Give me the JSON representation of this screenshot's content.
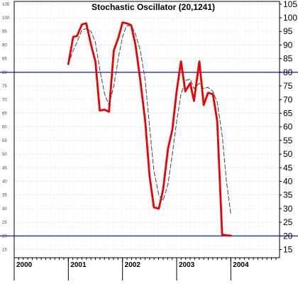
{
  "chart_data": {
    "type": "line",
    "title": "Stochastic Oscillator (20,1241)",
    "x_start": 2000.0,
    "x_end": 2004.9,
    "ylim": [
      12,
      106
    ],
    "y_ticks": [
      15,
      20,
      25,
      30,
      35,
      40,
      45,
      50,
      55,
      60,
      65,
      70,
      75,
      80,
      85,
      90,
      95,
      100,
      105
    ],
    "x_tick_labels": [
      "2000",
      "2001",
      "2002",
      "2003",
      "2004"
    ],
    "x_tick_positions": [
      2000,
      2001,
      2002,
      2003,
      2004
    ],
    "reference_lines": [
      {
        "value": 80,
        "color": "#1f2bd6"
      },
      {
        "value": 20,
        "color": "#1f2bd6"
      }
    ],
    "grid": true,
    "series": [
      {
        "style": "solid",
        "color": "#ee0000",
        "x": [
          2001.0,
          2001.09,
          2001.16,
          2001.25,
          2001.33,
          2001.42,
          2001.5,
          2001.58,
          2001.67,
          2001.75,
          2001.84,
          2001.93,
          2002.0,
          2002.07,
          2002.16,
          2002.24,
          2002.33,
          2002.42,
          2002.5,
          2002.58,
          2002.67,
          2002.75,
          2002.84,
          2002.92,
          2003.0,
          2003.08,
          2003.16,
          2003.25,
          2003.32,
          2003.42,
          2003.5,
          2003.58,
          2003.67,
          2003.75,
          2003.84,
          2003.92,
          2004.0
        ],
        "y": [
          83,
          93,
          93.3,
          97.5,
          98,
          90,
          84,
          66,
          66.3,
          65.5,
          88,
          93,
          98.3,
          98,
          97.3,
          90,
          77,
          62,
          42,
          30.5,
          30,
          37,
          52,
          59,
          73,
          84,
          73,
          76,
          69.5,
          84,
          68,
          72.5,
          72,
          62,
          20.5,
          20.2,
          20.1
        ]
      },
      {
        "style": "dashed",
        "color": "#444444",
        "x": [
          2001.0,
          2001.09,
          2001.16,
          2001.25,
          2001.33,
          2001.42,
          2001.5,
          2001.58,
          2001.67,
          2001.75,
          2001.84,
          2001.93,
          2002.0,
          2002.07,
          2002.16,
          2002.24,
          2002.33,
          2002.42,
          2002.5,
          2002.58,
          2002.67,
          2002.75,
          2002.84,
          2002.92,
          2003.0,
          2003.08,
          2003.16,
          2003.25,
          2003.32,
          2003.42,
          2003.5,
          2003.58,
          2003.67,
          2003.75,
          2003.84,
          2003.92,
          2004.0
        ],
        "y": [
          83,
          88,
          91,
          95.5,
          96,
          95,
          91,
          81,
          72,
          68,
          75,
          86,
          93,
          97,
          97.2,
          94,
          88,
          77,
          60,
          44,
          35,
          33,
          39,
          50,
          62,
          72,
          77,
          77.5,
          74,
          76,
          74,
          74.5,
          73,
          69,
          57,
          40,
          28
        ]
      }
    ]
  }
}
